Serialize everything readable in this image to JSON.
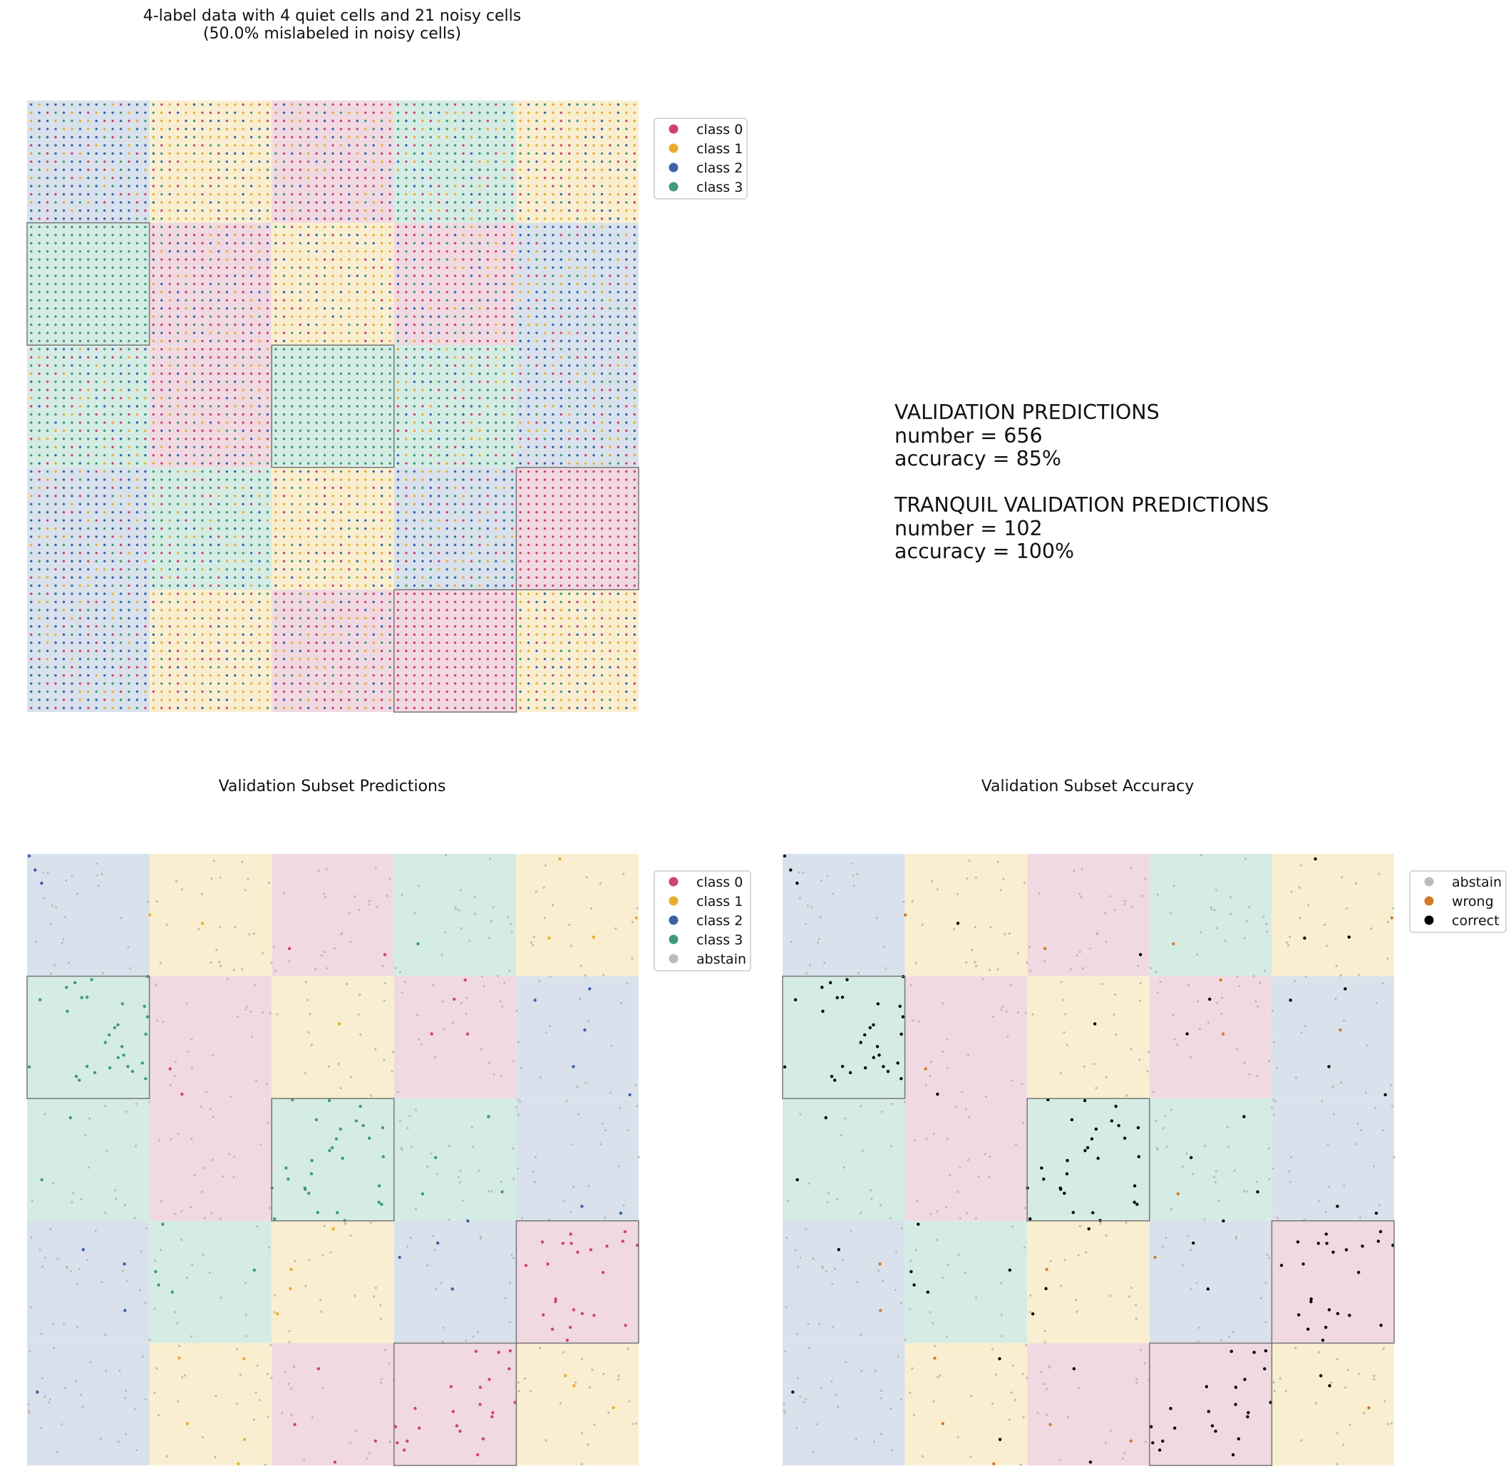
{
  "colors": {
    "class_0": "#d0426f",
    "class_1": "#e9ae2e",
    "class_2": "#3b62a8",
    "class_3": "#3f9a75",
    "abstain": "#bbbbbb",
    "wrong": "#d07a2a",
    "correct": "#000000",
    "bg_0": "#f1d9e2",
    "bg_1": "#f9efd0",
    "bg_2": "#d9e2ec",
    "bg_3": "#d5ece4"
  },
  "stats": {
    "line1": "VALIDATION PREDICTIONS",
    "line2": "number = 656",
    "line3": "accuracy = 85%",
    "line4": "TRANQUIL VALIDATION PREDICTIONS",
    "line5": "number = 102",
    "line6": "accuracy = 100%"
  },
  "chart_data": [
    {
      "type": "scatter",
      "title_line1": "4-label data with 4 quiet cells and 21 noisy cells",
      "title_line2": "(50.0% mislabeled in noisy cells)",
      "grid_size": [
        5,
        5
      ],
      "cell_majority_class": [
        [
          2,
          1,
          0,
          3,
          1
        ],
        [
          3,
          0,
          1,
          0,
          2
        ],
        [
          3,
          0,
          3,
          3,
          2
        ],
        [
          2,
          3,
          1,
          2,
          0
        ],
        [
          2,
          1,
          0,
          0,
          1
        ]
      ],
      "quiet_cells": [
        [
          1,
          0
        ],
        [
          2,
          2
        ],
        [
          3,
          4
        ],
        [
          4,
          3
        ]
      ],
      "noise_rate": 0.5,
      "points_per_cell_side": 15,
      "legend": [
        "class 0",
        "class 1",
        "class 2",
        "class 3"
      ]
    },
    {
      "type": "scatter",
      "title": "Validation Subset Predictions",
      "legend": [
        "class 0",
        "class 1",
        "class 2",
        "class 3",
        "abstain"
      ]
    },
    {
      "type": "scatter",
      "title": "Validation Subset Accuracy",
      "legend": [
        "abstain",
        "wrong",
        "correct"
      ]
    }
  ]
}
